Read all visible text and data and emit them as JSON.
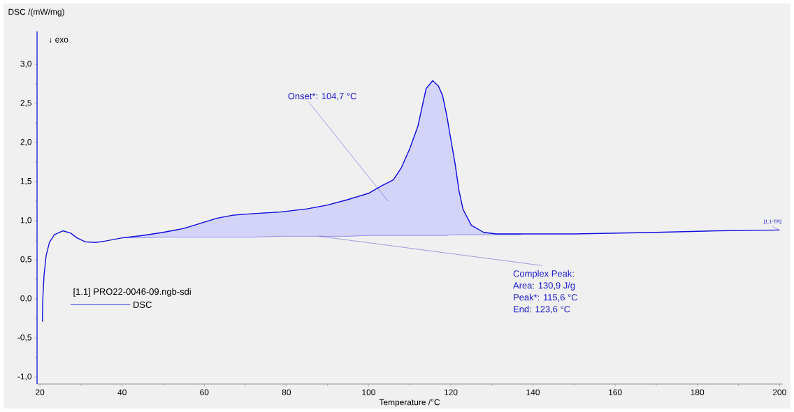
{
  "chart_data": {
    "type": "line",
    "xlabel": "Temperature /°C",
    "ylabel": "DSC /(mW/mg)",
    "legend_title": "[1.1]  PRO22-0046-09.ngb-sdi",
    "legend": "bottom left",
    "annotations": [
      "↓ exo",
      "Onset*: 104,7 °C",
      {
        "text": "Complex Peak:",
        "x": 88,
        "y": 0.8
      },
      "Area:    130,9 J/g",
      "Peak*:  115,6 °C",
      "End:     123,6 °C",
      {
        "text": "[1.1-TR]",
        "x": 200,
        "y": 0.88
      }
    ],
    "xlim": [
      19.3,
      200.8
    ],
    "ylim": [
      -1.09,
      3.42
    ],
    "xticks": [
      20,
      40,
      60,
      80,
      100,
      120,
      140,
      160,
      180,
      200
    ],
    "yticks": [
      {
        "value": -1,
        "label": "-1,0"
      },
      {
        "value": -0.5,
        "label": "-0,5"
      },
      {
        "value": 0,
        "label": "0,0"
      },
      {
        "value": 0.5,
        "label": "0,5"
      },
      {
        "value": 1,
        "label": "1,0"
      },
      {
        "value": 1.5,
        "label": "1,5"
      },
      {
        "value": 2,
        "label": "2,0"
      },
      {
        "value": 2.5,
        "label": "2,5"
      },
      {
        "value": 3,
        "label": "3,0"
      }
    ],
    "grid": false,
    "series": [
      {
        "name": "DSC",
        "color": "#1010e0",
        "x": [
          20.6,
          20.7,
          21.0,
          21.5,
          22.3,
          23.5,
          25.6,
          27.5,
          29,
          31,
          33.5,
          36,
          40,
          45,
          50,
          55,
          60,
          63,
          67,
          72,
          78.5,
          85,
          90,
          95,
          100,
          103,
          106,
          108,
          110,
          112,
          114,
          115.6,
          117,
          118,
          119,
          120,
          121,
          122,
          123,
          125,
          128,
          131,
          137,
          150,
          170,
          185,
          200
        ],
        "values": [
          -0.29,
          0.0,
          0.3,
          0.55,
          0.72,
          0.82,
          0.87,
          0.84,
          0.78,
          0.73,
          0.72,
          0.74,
          0.78,
          0.81,
          0.85,
          0.9,
          0.98,
          1.03,
          1.07,
          1.09,
          1.11,
          1.15,
          1.2,
          1.27,
          1.35,
          1.44,
          1.52,
          1.68,
          1.92,
          2.21,
          2.69,
          2.79,
          2.72,
          2.6,
          2.35,
          2.04,
          1.74,
          1.38,
          1.14,
          0.94,
          0.85,
          0.83,
          0.83,
          0.83,
          0.85,
          0.87,
          0.88
        ],
        "lower": [
          null,
          null,
          null,
          null,
          null,
          null,
          null,
          null,
          null,
          null,
          null,
          null,
          0.78,
          0.78,
          0.79,
          0.79,
          0.79,
          0.79,
          0.79,
          0.79,
          0.8,
          0.8,
          0.8,
          0.8,
          0.81,
          0.81,
          0.81,
          0.81,
          0.81,
          0.81,
          0.81,
          0.81,
          0.81,
          0.81,
          0.81,
          0.82,
          0.82,
          0.82,
          0.82,
          0.82,
          0.82,
          0.82,
          0.82,
          null,
          null,
          null,
          null
        ],
        "upper": [
          null,
          null,
          null,
          null,
          null,
          null,
          null,
          null,
          null,
          null,
          null,
          null,
          0.78,
          0.81,
          0.85,
          0.9,
          0.98,
          1.03,
          1.07,
          1.09,
          1.11,
          1.15,
          1.2,
          1.27,
          1.35,
          1.44,
          1.52,
          1.68,
          1.92,
          2.21,
          2.69,
          2.79,
          2.72,
          2.6,
          2.35,
          2.04,
          1.74,
          1.38,
          1.14,
          0.94,
          0.85,
          0.83,
          0.83,
          null,
          null,
          null,
          null
        ]
      }
    ]
  }
}
